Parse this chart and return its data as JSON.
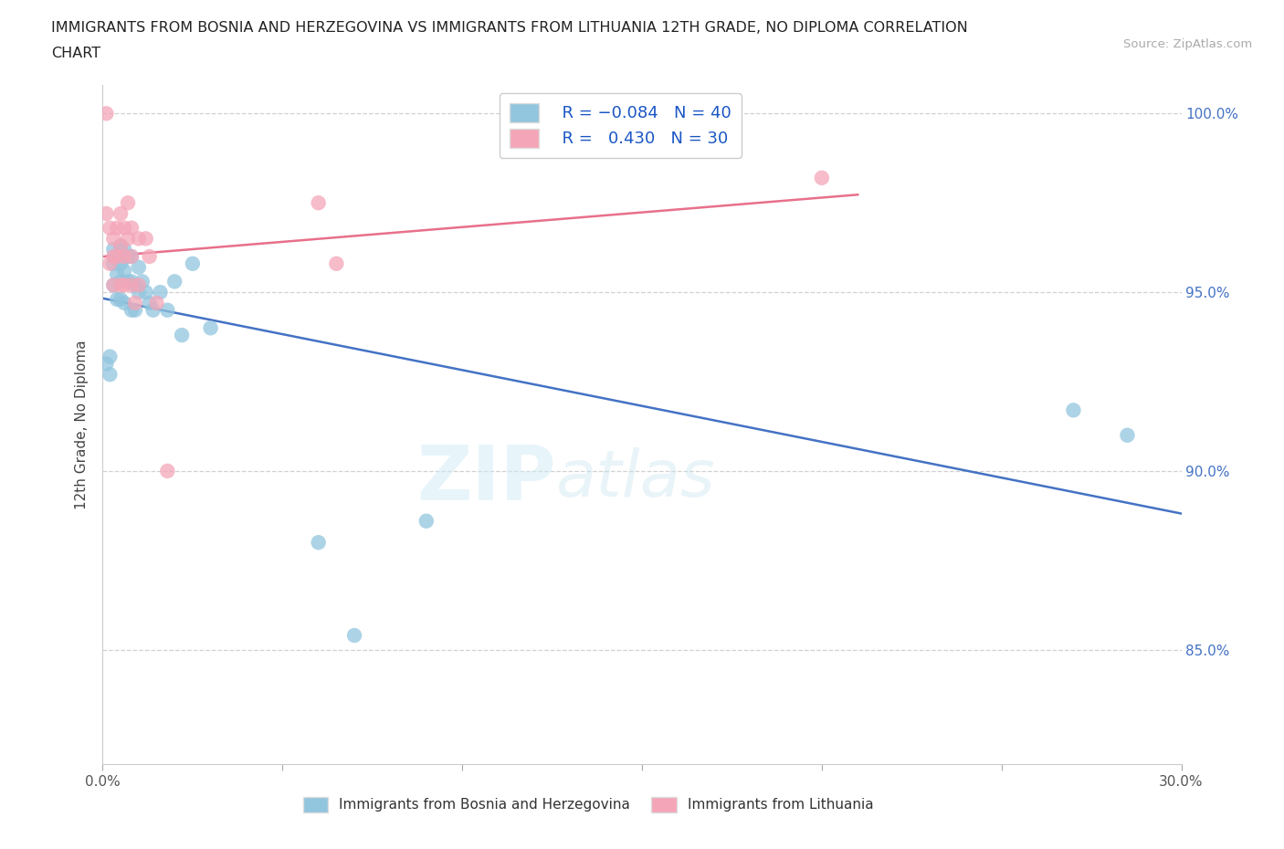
{
  "title_line1": "IMMIGRANTS FROM BOSNIA AND HERZEGOVINA VS IMMIGRANTS FROM LITHUANIA 12TH GRADE, NO DIPLOMA CORRELATION",
  "title_line2": "CHART",
  "source": "Source: ZipAtlas.com",
  "ylabel": "12th Grade, No Diploma",
  "xlim": [
    0.0,
    0.3
  ],
  "ylim": [
    0.818,
    1.008
  ],
  "R_blue": -0.084,
  "N_blue": 40,
  "R_pink": 0.43,
  "N_pink": 30,
  "blue_color": "#92c5de",
  "pink_color": "#f4a6b8",
  "blue_line_color": "#4472c4",
  "pink_line_color": "#e8708a",
  "legend_label_blue": "Immigrants from Bosnia and Herzegovina",
  "legend_label_pink": "Immigrants from Lithuania",
  "blue_scatter_x": [
    0.001,
    0.002,
    0.002,
    0.003,
    0.003,
    0.003,
    0.004,
    0.004,
    0.004,
    0.005,
    0.005,
    0.005,
    0.005,
    0.006,
    0.006,
    0.006,
    0.007,
    0.007,
    0.008,
    0.008,
    0.008,
    0.009,
    0.009,
    0.01,
    0.01,
    0.011,
    0.012,
    0.013,
    0.014,
    0.016,
    0.018,
    0.02,
    0.022,
    0.025,
    0.03,
    0.06,
    0.07,
    0.09,
    0.27,
    0.285
  ],
  "blue_scatter_y": [
    0.93,
    0.932,
    0.927,
    0.962,
    0.958,
    0.952,
    0.96,
    0.955,
    0.948,
    0.963,
    0.958,
    0.953,
    0.948,
    0.962,
    0.956,
    0.947,
    0.96,
    0.953,
    0.96,
    0.953,
    0.945,
    0.952,
    0.945,
    0.957,
    0.95,
    0.953,
    0.95,
    0.947,
    0.945,
    0.95,
    0.945,
    0.953,
    0.938,
    0.958,
    0.94,
    0.88,
    0.854,
    0.886,
    0.917,
    0.91
  ],
  "pink_scatter_x": [
    0.001,
    0.001,
    0.002,
    0.002,
    0.003,
    0.003,
    0.003,
    0.004,
    0.004,
    0.005,
    0.005,
    0.005,
    0.006,
    0.006,
    0.006,
    0.007,
    0.007,
    0.008,
    0.008,
    0.008,
    0.009,
    0.01,
    0.01,
    0.012,
    0.013,
    0.015,
    0.018,
    0.06,
    0.065,
    0.2
  ],
  "pink_scatter_y": [
    1.0,
    0.972,
    0.968,
    0.958,
    0.965,
    0.96,
    0.952,
    0.968,
    0.96,
    0.972,
    0.963,
    0.952,
    0.968,
    0.96,
    0.952,
    0.975,
    0.965,
    0.968,
    0.96,
    0.952,
    0.947,
    0.965,
    0.952,
    0.965,
    0.96,
    0.947,
    0.9,
    0.975,
    0.958,
    0.982
  ],
  "yticks": [
    0.85,
    0.9,
    0.95,
    1.0
  ],
  "yticklabels": [
    "85.0%",
    "90.0%",
    "95.0%",
    "100.0%"
  ],
  "xtick_vals": [
    0.0,
    0.05,
    0.1,
    0.15,
    0.2,
    0.25,
    0.3
  ],
  "watermark_text": "ZIPatlas"
}
